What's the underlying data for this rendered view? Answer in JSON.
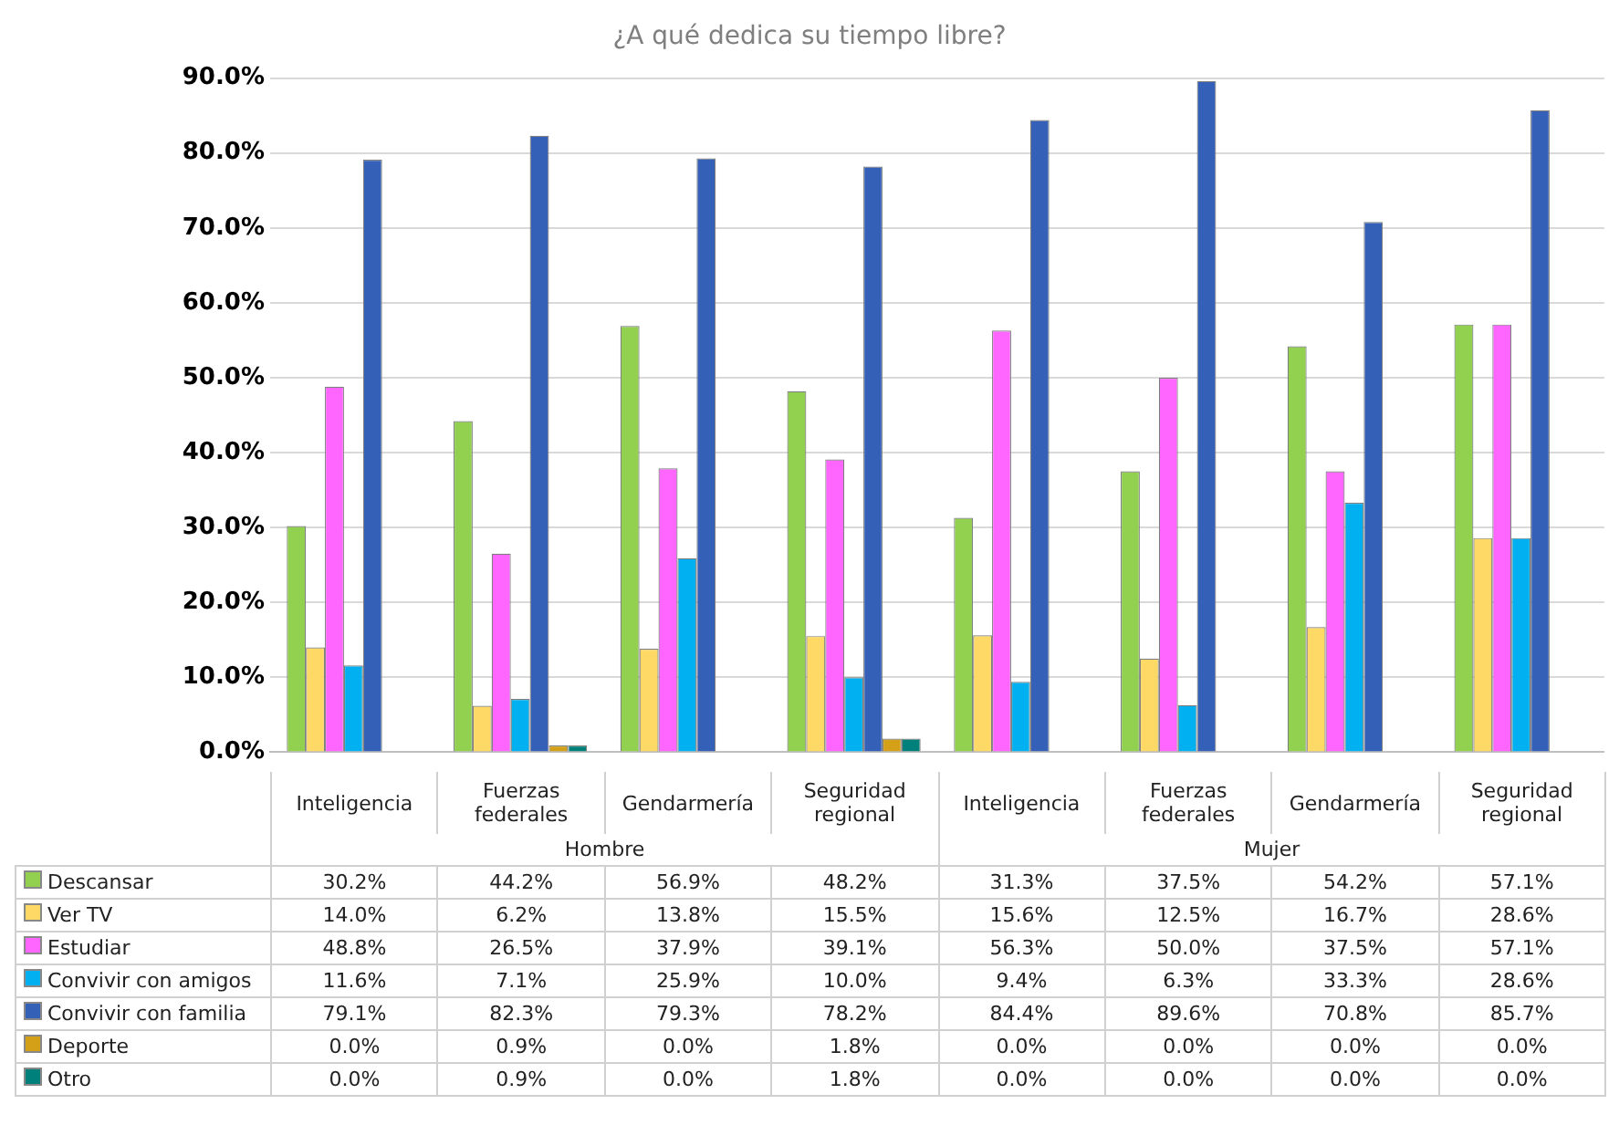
{
  "chart_data": {
    "type": "bar",
    "title": "¿A qué dedica su tiempo libre?",
    "categories": [
      "Inteligencia",
      "Fuerzas federales",
      "Gendarmería",
      "Seguridad regional",
      "Inteligencia",
      "Fuerzas federales",
      "Gendarmería",
      "Seguridad regional"
    ],
    "annotations": [
      "Hombre",
      "Mujer"
    ],
    "ylim": [
      0,
      90
    ],
    "yticks": [
      {
        "value": 0,
        "label": "0.0%"
      },
      {
        "value": 10,
        "label": "10.0%"
      },
      {
        "value": 20,
        "label": "20.0%"
      },
      {
        "value": 30,
        "label": "30.0%"
      },
      {
        "value": 40,
        "label": "40.0%"
      },
      {
        "value": 50,
        "label": "50.0%"
      },
      {
        "value": 60,
        "label": "60.0%"
      },
      {
        "value": 70,
        "label": "70.0%"
      },
      {
        "value": 80,
        "label": "80.0%"
      },
      {
        "value": 90,
        "label": "90.0%"
      }
    ],
    "grid": "y",
    "legend": "bottom",
    "series": [
      {
        "name": "Descansar",
        "color": "#92d050",
        "values": [
          30.2,
          44.2,
          56.9,
          48.2,
          31.3,
          37.5,
          54.2,
          57.1
        ],
        "value_labels": [
          "30.2%",
          "44.2%",
          "56.9%",
          "48.2%",
          "31.3%",
          "37.5%",
          "54.2%",
          "57.1%"
        ]
      },
      {
        "name": "Ver TV",
        "color": "#ffd966",
        "values": [
          14.0,
          6.2,
          13.8,
          15.5,
          15.6,
          12.5,
          16.7,
          28.6
        ],
        "value_labels": [
          "14.0%",
          "6.2%",
          "13.8%",
          "15.5%",
          "15.6%",
          "12.5%",
          "16.7%",
          "28.6%"
        ]
      },
      {
        "name": "Estudiar",
        "color": "#ff66ff",
        "values": [
          48.8,
          26.5,
          37.9,
          39.1,
          56.3,
          50.0,
          37.5,
          57.1
        ],
        "value_labels": [
          "48.8%",
          "26.5%",
          "37.9%",
          "39.1%",
          "56.3%",
          "50.0%",
          "37.5%",
          "57.1%"
        ]
      },
      {
        "name": "Convivir con amigos",
        "color": "#00b0f0",
        "values": [
          11.6,
          7.1,
          25.9,
          10.0,
          9.4,
          6.3,
          33.3,
          28.6
        ],
        "value_labels": [
          "11.6%",
          "7.1%",
          "25.9%",
          "10.0%",
          "9.4%",
          "6.3%",
          "33.3%",
          "28.6%"
        ]
      },
      {
        "name": "Convivir con familia",
        "color": "#3560b8",
        "values": [
          79.1,
          82.3,
          79.3,
          78.2,
          84.4,
          89.6,
          70.8,
          85.7
        ],
        "value_labels": [
          "79.1%",
          "82.3%",
          "79.3%",
          "78.2%",
          "84.4%",
          "89.6%",
          "70.8%",
          "85.7%"
        ]
      },
      {
        "name": "Deporte",
        "color": "#d4a017",
        "values": [
          0.0,
          0.9,
          0.0,
          1.8,
          0.0,
          0.0,
          0.0,
          0.0
        ],
        "value_labels": [
          "0.0%",
          "0.9%",
          "0.0%",
          "1.8%",
          "0.0%",
          "0.0%",
          "0.0%",
          "0.0%"
        ]
      },
      {
        "name": "Otro",
        "color": "#00807a",
        "values": [
          0.0,
          0.9,
          0.0,
          1.8,
          0.0,
          0.0,
          0.0,
          0.0
        ],
        "value_labels": [
          "0.0%",
          "0.9%",
          "0.0%",
          "1.8%",
          "0.0%",
          "0.0%",
          "0.0%",
          "0.0%"
        ]
      }
    ]
  }
}
